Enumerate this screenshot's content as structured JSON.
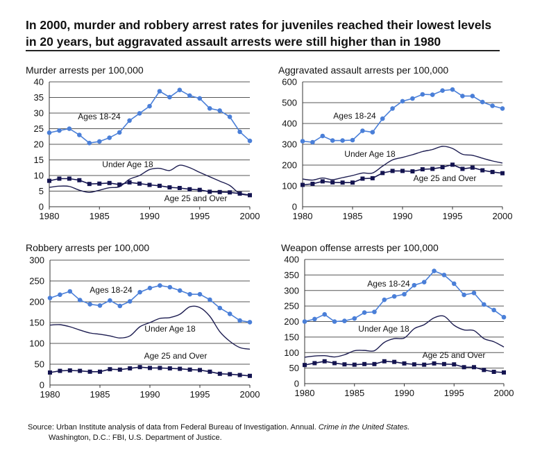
{
  "title_line1": "In 2000, murder and robbery arrest rates for juveniles reached their lowest levels",
  "title_line2": "in 20 years, but aggravated assault arrests were still higher than in 1980",
  "source_line1_prefix": "Source: Urban Institute analysis of data from Federal Bureau of Investigation. Annual.",
  "source_line1_italic": "Crime in the United States.",
  "source_line2": "Washington, D.C.: FBI, U.S. Department of Justice.",
  "colors": {
    "ages_18_24": "#4a7fd8",
    "under_18": "#1c1c50",
    "age_25_over": "#141450",
    "grid": "#555555"
  },
  "chart_data": [
    {
      "type": "line",
      "title": "Murder arrests per 100,000",
      "x": [
        1980,
        1981,
        1982,
        1983,
        1984,
        1985,
        1986,
        1987,
        1988,
        1989,
        1990,
        1991,
        1992,
        1993,
        1994,
        1995,
        1996,
        1997,
        1998,
        1999,
        2000
      ],
      "xticks": [
        "1980",
        "1985",
        "1990",
        "1995",
        "2000"
      ],
      "ylim": [
        0,
        40
      ],
      "yticks": [
        "0",
        "5",
        "10",
        "15",
        "20",
        "25",
        "30",
        "35",
        "40"
      ],
      "grid": true,
      "series": [
        {
          "name": "Ages 18-24",
          "marker": "circle",
          "values": [
            23.7,
            24.4,
            25,
            23,
            20.4,
            20.9,
            22.1,
            23.8,
            27.6,
            29.9,
            32.2,
            37,
            35.1,
            37.4,
            35.6,
            34.7,
            31.5,
            30.8,
            28.8,
            24,
            21.1
          ]
        },
        {
          "name": "Under Age 18",
          "marker": "none",
          "values": [
            6.2,
            6.6,
            6.5,
            5.3,
            4.6,
            5.3,
            6.1,
            6.4,
            8.8,
            10,
            11.9,
            12.3,
            11.6,
            13.3,
            12.5,
            11,
            9.6,
            8.2,
            6.8,
            4.2,
            3.7
          ]
        },
        {
          "name": "Age 25 and Over",
          "marker": "square",
          "values": [
            8.3,
            9,
            9,
            8.5,
            7.3,
            7.4,
            7.6,
            7.1,
            7.8,
            7.4,
            7,
            6.7,
            6.2,
            6,
            5.6,
            5.4,
            4.8,
            4.7,
            4.6,
            4.2,
            3.7
          ]
        }
      ]
    },
    {
      "type": "line",
      "title": "Aggravated assault arrests per 100,000",
      "x": [
        1980,
        1981,
        1982,
        1983,
        1984,
        1985,
        1986,
        1987,
        1988,
        1989,
        1990,
        1991,
        1992,
        1993,
        1994,
        1995,
        1996,
        1997,
        1998,
        1999,
        2000
      ],
      "xticks": [
        "1980",
        "1985",
        "1990",
        "1995",
        "2000"
      ],
      "ylim": [
        0,
        600
      ],
      "yticks": [
        "0",
        "100",
        "200",
        "300",
        "400",
        "500",
        "600"
      ],
      "grid": true,
      "series": [
        {
          "name": "Ages 18-24",
          "marker": "circle",
          "values": [
            315,
            310,
            340,
            318,
            318,
            320,
            365,
            358,
            423,
            472,
            507,
            520,
            540,
            538,
            558,
            563,
            532,
            532,
            503,
            485,
            472
          ]
        },
        {
          "name": "Under Age 18",
          "marker": "none",
          "values": [
            133,
            128,
            138,
            130,
            140,
            150,
            162,
            162,
            195,
            225,
            237,
            250,
            265,
            275,
            290,
            280,
            252,
            247,
            233,
            220,
            210
          ]
        },
        {
          "name": "Age 25 and Over",
          "marker": "square",
          "values": [
            105,
            110,
            122,
            117,
            116,
            116,
            135,
            137,
            162,
            172,
            172,
            170,
            180,
            182,
            190,
            202,
            182,
            188,
            175,
            167,
            161
          ]
        }
      ]
    },
    {
      "type": "line",
      "title": "Robbery arrests per 100,000",
      "x": [
        1980,
        1981,
        1982,
        1983,
        1984,
        1985,
        1986,
        1987,
        1988,
        1989,
        1990,
        1991,
        1992,
        1993,
        1994,
        1995,
        1996,
        1997,
        1998,
        1999,
        2000
      ],
      "xticks": [
        "1980",
        "1985",
        "1990",
        "1995",
        "2000"
      ],
      "ylim": [
        0,
        300
      ],
      "yticks": [
        "0",
        "50",
        "100",
        "150",
        "200",
        "250",
        "300"
      ],
      "grid": true,
      "series": [
        {
          "name": "Ages 18-24",
          "marker": "circle",
          "values": [
            209,
            217,
            225,
            204,
            194,
            191,
            203,
            190,
            201,
            223,
            233,
            239,
            235,
            227,
            218,
            218,
            205,
            185,
            171,
            155,
            151
          ]
        },
        {
          "name": "Under Age 18",
          "marker": "none",
          "values": [
            144,
            145,
            140,
            132,
            125,
            122,
            118,
            113,
            118,
            140,
            150,
            160,
            162,
            170,
            188,
            186,
            165,
            128,
            105,
            90,
            86
          ]
        },
        {
          "name": "Age 25 and Over",
          "marker": "square",
          "values": [
            30,
            34,
            35,
            34,
            32,
            32,
            38,
            37,
            40,
            43,
            41,
            41,
            40,
            39,
            37,
            36,
            32,
            27,
            26,
            24,
            22
          ]
        }
      ]
    },
    {
      "type": "line",
      "title": "Weapon offense arrests per 100,000",
      "x": [
        1980,
        1981,
        1982,
        1983,
        1984,
        1985,
        1986,
        1987,
        1988,
        1989,
        1990,
        1991,
        1992,
        1993,
        1994,
        1995,
        1996,
        1997,
        1998,
        1999,
        2000
      ],
      "xticks": [
        "1980",
        "1985",
        "1990",
        "1995",
        "2000"
      ],
      "ylim": [
        0,
        400
      ],
      "yticks": [
        "0",
        "50",
        "100",
        "150",
        "200",
        "250",
        "300",
        "350",
        "400"
      ],
      "grid": true,
      "series": [
        {
          "name": "Ages 18-24",
          "marker": "circle",
          "values": [
            200,
            208,
            223,
            200,
            202,
            210,
            229,
            231,
            270,
            281,
            288,
            317,
            327,
            363,
            350,
            322,
            286,
            292,
            255,
            237,
            214
          ]
        },
        {
          "name": "Under Age 18",
          "marker": "none",
          "values": [
            85,
            89,
            90,
            86,
            93,
            106,
            107,
            106,
            133,
            145,
            147,
            177,
            190,
            212,
            217,
            188,
            173,
            171,
            145,
            135,
            118
          ]
        },
        {
          "name": "Age 25 and Over",
          "marker": "square",
          "values": [
            60,
            66,
            72,
            66,
            62,
            61,
            63,
            63,
            72,
            70,
            65,
            62,
            61,
            65,
            63,
            62,
            53,
            53,
            44,
            38,
            36
          ]
        }
      ]
    }
  ]
}
